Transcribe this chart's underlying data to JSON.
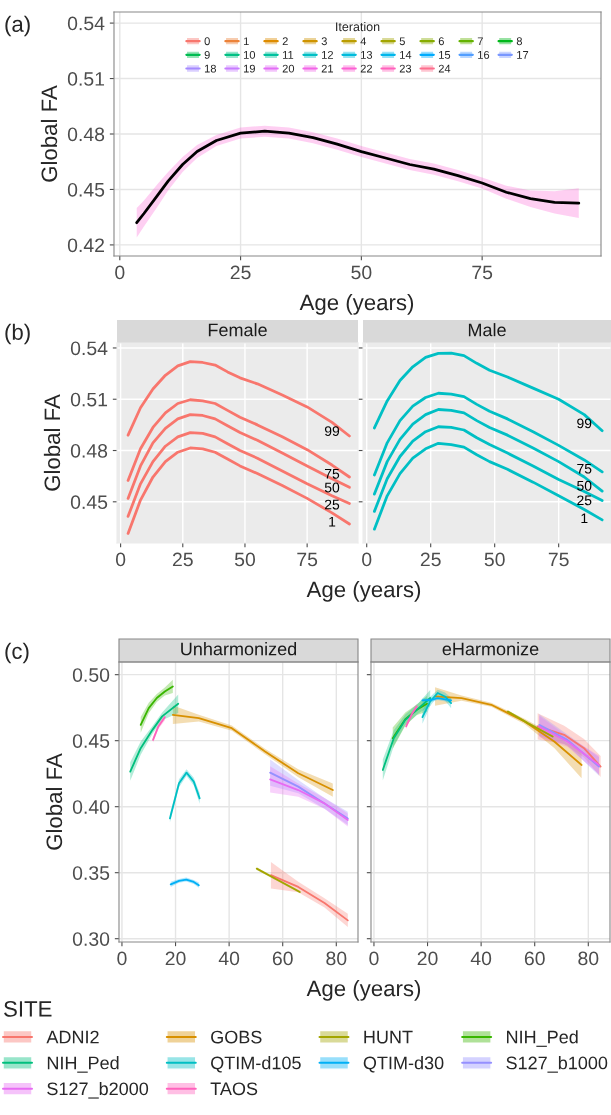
{
  "chart_data": [
    {
      "type": "line",
      "ylabel": "Global FA",
      "xlabel": "Age (years)",
      "legend_title": "Iteration",
      "legend": "top",
      "grid": true,
      "annotations": [
        "(a)"
      ],
      "xlim": [
        -1.2,
        99.6
      ],
      "ylim": [
        0.414,
        0.546
      ],
      "xticks": [
        0,
        25,
        50,
        75
      ],
      "yticks": [
        0.42,
        0.45,
        0.48,
        0.51,
        0.54
      ],
      "x": [
        3.5,
        5,
        8,
        10,
        13,
        16,
        20,
        25,
        30,
        35,
        40,
        45,
        50,
        55,
        60,
        65,
        70,
        75,
        80,
        85,
        90,
        95
      ],
      "series": [
        {
          "name": "0",
          "color": "#f8766d",
          "values": [
            null,
            null,
            null,
            null,
            null,
            null,
            null,
            null,
            null,
            null,
            null,
            null,
            null,
            null,
            null,
            null,
            null,
            null,
            null,
            null,
            null,
            null
          ]
        },
        {
          "name": "1",
          "color": "#ec8239",
          "values": [
            null,
            null,
            null,
            null,
            null,
            null,
            null,
            null,
            null,
            null,
            null,
            null,
            null,
            null,
            null,
            null,
            null,
            null,
            null,
            null,
            null,
            null
          ]
        },
        {
          "name": "2",
          "color": "#de8c00",
          "values": [
            null,
            null,
            null,
            null,
            null,
            null,
            null,
            null,
            null,
            null,
            null,
            null,
            null,
            null,
            null,
            null,
            null,
            null,
            null,
            null,
            null,
            null
          ]
        },
        {
          "name": "3",
          "color": "#cf9400",
          "values": [
            null,
            null,
            null,
            null,
            null,
            null,
            null,
            null,
            null,
            null,
            null,
            null,
            null,
            null,
            null,
            null,
            null,
            null,
            null,
            null,
            null,
            null
          ]
        },
        {
          "name": "4",
          "color": "#bb9d00",
          "values": [
            null,
            null,
            null,
            null,
            null,
            null,
            null,
            null,
            null,
            null,
            null,
            null,
            null,
            null,
            null,
            null,
            null,
            null,
            null,
            null,
            null,
            null
          ]
        },
        {
          "name": "5",
          "color": "#a3a500",
          "values": [
            null,
            null,
            null,
            null,
            null,
            null,
            null,
            null,
            null,
            null,
            null,
            null,
            null,
            null,
            null,
            null,
            null,
            null,
            null,
            null,
            null,
            null
          ]
        },
        {
          "name": "6",
          "color": "#87ac00",
          "values": [
            null,
            null,
            null,
            null,
            null,
            null,
            null,
            null,
            null,
            null,
            null,
            null,
            null,
            null,
            null,
            null,
            null,
            null,
            null,
            null,
            null,
            null
          ]
        },
        {
          "name": "7",
          "color": "#64b200",
          "values": [
            null,
            null,
            null,
            null,
            null,
            null,
            null,
            null,
            null,
            null,
            null,
            null,
            null,
            null,
            null,
            null,
            null,
            null,
            null,
            null,
            null,
            null
          ]
        },
        {
          "name": "8",
          "color": "#00b81b",
          "values": [
            null,
            null,
            null,
            null,
            null,
            null,
            null,
            null,
            null,
            null,
            null,
            null,
            null,
            null,
            null,
            null,
            null,
            null,
            null,
            null,
            null,
            null
          ]
        },
        {
          "name": "9",
          "color": "#00bc51",
          "values": [
            null,
            null,
            null,
            null,
            null,
            null,
            null,
            null,
            null,
            null,
            null,
            null,
            null,
            null,
            null,
            null,
            null,
            null,
            null,
            null,
            null,
            null
          ]
        },
        {
          "name": "10",
          "color": "#00c083",
          "values": [
            null,
            null,
            null,
            null,
            null,
            null,
            null,
            null,
            null,
            null,
            null,
            null,
            null,
            null,
            null,
            null,
            null,
            null,
            null,
            null,
            null,
            null
          ]
        },
        {
          "name": "11",
          "color": "#00c19e",
          "values": [
            null,
            null,
            null,
            null,
            null,
            null,
            null,
            null,
            null,
            null,
            null,
            null,
            null,
            null,
            null,
            null,
            null,
            null,
            null,
            null,
            null,
            null
          ]
        },
        {
          "name": "12",
          "color": "#00bfc4",
          "values": [
            null,
            null,
            null,
            null,
            null,
            null,
            null,
            null,
            null,
            null,
            null,
            null,
            null,
            null,
            null,
            null,
            null,
            null,
            null,
            null,
            null,
            null
          ]
        },
        {
          "name": "13",
          "color": "#00bbdb",
          "values": [
            null,
            null,
            null,
            null,
            null,
            null,
            null,
            null,
            null,
            null,
            null,
            null,
            null,
            null,
            null,
            null,
            null,
            null,
            null,
            null,
            null,
            null
          ]
        },
        {
          "name": "14",
          "color": "#00b6eb",
          "values": [
            null,
            null,
            null,
            null,
            null,
            null,
            null,
            null,
            null,
            null,
            null,
            null,
            null,
            null,
            null,
            null,
            null,
            null,
            null,
            null,
            null,
            null
          ]
        },
        {
          "name": "15",
          "color": "#00abfd",
          "values": [
            null,
            null,
            null,
            null,
            null,
            null,
            null,
            null,
            null,
            null,
            null,
            null,
            null,
            null,
            null,
            null,
            null,
            null,
            null,
            null,
            null,
            null
          ]
        },
        {
          "name": "16",
          "color": "#529eff",
          "values": [
            null,
            null,
            null,
            null,
            null,
            null,
            null,
            null,
            null,
            null,
            null,
            null,
            null,
            null,
            null,
            null,
            null,
            null,
            null,
            null,
            null,
            null
          ]
        },
        {
          "name": "17",
          "color": "#7997ff",
          "values": [
            null,
            null,
            null,
            null,
            null,
            null,
            null,
            null,
            null,
            null,
            null,
            null,
            null,
            null,
            null,
            null,
            null,
            null,
            null,
            null,
            null,
            null
          ]
        },
        {
          "name": "18",
          "color": "#a58aff",
          "values": [
            null,
            null,
            null,
            null,
            null,
            null,
            null,
            null,
            null,
            null,
            null,
            null,
            null,
            null,
            null,
            null,
            null,
            null,
            null,
            null,
            null,
            null
          ]
        },
        {
          "name": "19",
          "color": "#c77cff",
          "values": [
            null,
            null,
            null,
            null,
            null,
            null,
            null,
            null,
            null,
            null,
            null,
            null,
            null,
            null,
            null,
            null,
            null,
            null,
            null,
            null,
            null,
            null
          ]
        },
        {
          "name": "20",
          "color": "#e36ef6",
          "values": [
            null,
            null,
            null,
            null,
            null,
            null,
            null,
            null,
            null,
            null,
            null,
            null,
            null,
            null,
            null,
            null,
            null,
            null,
            null,
            null,
            null,
            null
          ]
        },
        {
          "name": "21",
          "color": "#f265e7",
          "values": [
            null,
            null,
            null,
            null,
            null,
            null,
            null,
            null,
            null,
            null,
            null,
            null,
            null,
            null,
            null,
            null,
            null,
            null,
            null,
            null,
            null,
            null
          ]
        },
        {
          "name": "22",
          "color": "#fc61d3",
          "values": [
            null,
            null,
            null,
            null,
            null,
            null,
            null,
            null,
            null,
            null,
            null,
            null,
            null,
            null,
            null,
            null,
            null,
            null,
            null,
            null,
            null,
            null
          ],
          "lower": [
            0.424,
            0.43,
            0.4415,
            0.4495,
            0.4595,
            0.467,
            0.4735,
            0.4775,
            0.4785,
            0.4775,
            0.475,
            0.4715,
            0.4675,
            0.464,
            0.4605,
            0.458,
            0.4545,
            0.4505,
            0.445,
            0.4405,
            0.437,
            0.4346
          ],
          "upper": [
            0.44,
            0.444,
            0.4535,
            0.4595,
            0.4675,
            0.474,
            0.4795,
            0.4835,
            0.4845,
            0.4835,
            0.481,
            0.4775,
            0.4735,
            0.47,
            0.4665,
            0.464,
            0.4605,
            0.4565,
            0.452,
            0.4495,
            0.449,
            0.4506
          ]
        },
        {
          "name": "23",
          "color": "#ff62bc",
          "values": [
            null,
            null,
            null,
            null,
            null,
            null,
            null,
            null,
            null,
            null,
            null,
            null,
            null,
            null,
            null,
            null,
            null,
            null,
            null,
            null,
            null,
            null
          ]
        },
        {
          "name": "24",
          "color": "#fd6f8e",
          "values": [
            null,
            null,
            null,
            null,
            null,
            null,
            null,
            null,
            null,
            null,
            null,
            null,
            null,
            null,
            null,
            null,
            null,
            null,
            null,
            null,
            null,
            null
          ]
        },
        {
          "color": "#000000",
          "values": [
            0.432,
            0.437,
            0.4475,
            0.4545,
            0.4635,
            0.4705,
            0.4765,
            0.4805,
            0.4815,
            0.4805,
            0.478,
            0.4745,
            0.4705,
            0.467,
            0.4635,
            0.461,
            0.4575,
            0.4535,
            0.4485,
            0.445,
            0.443,
            0.4426
          ]
        }
      ]
    },
    {
      "type": "line",
      "title": "Female",
      "ylabel": "Global FA",
      "xlabel": "Age (years)",
      "grid": true,
      "annotations": [
        "(b)"
      ],
      "xlim": [
        -1.45,
        95.45
      ],
      "ylim": [
        0.4259,
        0.5429
      ],
      "xticks": [
        0,
        25,
        50,
        75
      ],
      "yticks": [
        0.45,
        0.48,
        0.51,
        0.54
      ],
      "x": [
        3,
        8,
        13,
        18,
        23,
        28,
        33,
        38,
        43,
        48,
        55,
        65,
        75,
        85,
        92
      ],
      "series": [
        {
          "name": "99",
          "color": "#f8766d",
          "values": [
            0.489,
            0.505,
            0.516,
            0.524,
            0.5295,
            0.532,
            0.5315,
            0.53,
            0.526,
            0.5225,
            0.519,
            0.5125,
            0.5055,
            0.4965,
            0.4885
          ]
        },
        {
          "name": "75",
          "color": "#f8766d",
          "values": [
            0.4625,
            0.481,
            0.4935,
            0.502,
            0.5075,
            0.5097,
            0.509,
            0.5075,
            0.5035,
            0.4995,
            0.495,
            0.488,
            0.4805,
            0.4715,
            0.4645
          ]
        },
        {
          "name": "50",
          "color": "#f8766d",
          "values": [
            0.452,
            0.471,
            0.4845,
            0.493,
            0.4985,
            0.501,
            0.5005,
            0.4985,
            0.4945,
            0.4905,
            0.486,
            0.4785,
            0.471,
            0.4635,
            0.4585
          ]
        },
        {
          "name": "25",
          "color": "#f8766d",
          "values": [
            0.4415,
            0.4605,
            0.4735,
            0.4825,
            0.488,
            0.4905,
            0.49,
            0.488,
            0.484,
            0.48,
            0.4755,
            0.468,
            0.4605,
            0.4535,
            0.449
          ]
        },
        {
          "name": "1",
          "color": "#f8766d",
          "values": [
            0.4315,
            0.451,
            0.4645,
            0.4735,
            0.479,
            0.4815,
            0.481,
            0.479,
            0.475,
            0.471,
            0.4665,
            0.4595,
            0.452,
            0.4435,
            0.437
          ]
        }
      ]
    },
    {
      "type": "line",
      "title": "Male",
      "grid": true,
      "tick_labels": "x",
      "xlim": [
        -1.45,
        95.45
      ],
      "ylim": [
        0.4259,
        0.5429
      ],
      "xticks": [
        0,
        25,
        50,
        75
      ],
      "yticks": [
        {
          "value": 0.45,
          "label": null
        },
        {
          "value": 0.48,
          "label": null
        },
        {
          "value": 0.51,
          "label": null
        },
        {
          "value": 0.54,
          "label": null
        }
      ],
      "x": [
        3,
        8,
        13,
        18,
        23,
        28,
        33,
        38,
        43,
        48,
        55,
        65,
        75,
        85,
        92
      ],
      "series": [
        {
          "name": "99",
          "color": "#00bfc4",
          "values": [
            0.4932,
            0.509,
            0.521,
            0.529,
            0.5345,
            0.5368,
            0.537,
            0.5355,
            0.531,
            0.527,
            0.523,
            0.5165,
            0.51,
            0.501,
            0.4916
          ]
        },
        {
          "name": "75",
          "color": "#00bfc4",
          "values": [
            0.4657,
            0.4845,
            0.4975,
            0.506,
            0.511,
            0.5135,
            0.513,
            0.5115,
            0.507,
            0.503,
            0.4985,
            0.491,
            0.483,
            0.4745,
            0.4675
          ]
        },
        {
          "name": "50",
          "color": "#00bfc4",
          "values": [
            0.4545,
            0.4735,
            0.4865,
            0.4955,
            0.501,
            0.504,
            0.5035,
            0.502,
            0.4975,
            0.4935,
            0.489,
            0.4815,
            0.4735,
            0.4645,
            0.4563
          ]
        },
        {
          "name": "25",
          "color": "#00bfc4",
          "values": [
            0.4444,
            0.4635,
            0.4765,
            0.4855,
            0.491,
            0.4939,
            0.4935,
            0.492,
            0.4875,
            0.4835,
            0.4785,
            0.471,
            0.463,
            0.456,
            0.4507
          ]
        },
        {
          "name": "1",
          "color": "#00bfc4",
          "values": [
            0.434,
            0.4535,
            0.4665,
            0.4755,
            0.481,
            0.4842,
            0.4835,
            0.482,
            0.4775,
            0.4735,
            0.469,
            0.4615,
            0.4535,
            0.4455,
            0.4394
          ]
        }
      ]
    },
    {
      "type": "line",
      "title": "Unharmonized",
      "ylabel": "Global FA",
      "xlabel": "Age (years)",
      "grid": true,
      "legend": "bottom",
      "legend_title": "SITE",
      "annotations": [
        "(c)"
      ],
      "xlim": [
        -1.1,
        88.1
      ],
      "ylim": [
        0.2975,
        0.5096
      ],
      "xticks": [
        0,
        20,
        40,
        60,
        80
      ],
      "yticks": [
        {
          "value": 0.3,
          "label": "0.30"
        },
        0.35,
        {
          "value": 0.4,
          "label": "0.40"
        },
        0.45,
        {
          "value": 0.5,
          "label": "0.50"
        }
      ],
      "series": [
        {
          "name": "ADNI2",
          "color": "#f8766d",
          "x": [
            55.6,
            65.8,
            75.6,
            84.3
          ],
          "values": [
            0.3481,
            0.3392,
            0.3271,
            0.3139
          ],
          "lower": [
            0.3381,
            0.3352,
            0.3236,
            0.3089
          ],
          "upper": [
            0.3581,
            0.3432,
            0.3306,
            0.3189
          ]
        },
        {
          "name": "GOBS",
          "color": "#d89000",
          "x": [
            19,
            28.7,
            41,
            53.4,
            65.8,
            78.7
          ],
          "values": [
            0.4696,
            0.4671,
            0.4595,
            0.4418,
            0.4253,
            0.4126
          ],
          "lower": [
            0.4626,
            0.4646,
            0.4575,
            0.4398,
            0.4223,
            0.4076
          ],
          "upper": [
            0.4766,
            0.4696,
            0.4615,
            0.4438,
            0.4283,
            0.4176
          ]
        },
        {
          "name": "HUNT",
          "color": "#a3a500",
          "x": [
            50.3,
            58.3,
            66.4
          ],
          "values": [
            0.3531,
            0.3443,
            0.3354
          ],
          "lower": [
            0.3521,
            0.3433,
            0.3344
          ],
          "upper": [
            0.3541,
            0.3453,
            0.3364
          ]
        },
        {
          "name": "NIH_Ped",
          "color": "#39b600",
          "x": [
            7,
            10,
            13,
            16,
            19
          ],
          "values": [
            0.462,
            0.4747,
            0.4823,
            0.4873,
            0.4911
          ],
          "lower": [
            0.456,
            0.4707,
            0.4793,
            0.4843,
            0.4861
          ],
          "upper": [
            0.468,
            0.4787,
            0.4853,
            0.4903,
            0.4961
          ]
        },
        {
          "name": "NIH_Ped",
          "color": "#00bf7d",
          "x": [
            3.1,
            7,
            11.4,
            15,
            21
          ],
          "values": [
            0.4266,
            0.4443,
            0.4582,
            0.4684,
            0.478
          ],
          "lower": [
            0.4196,
            0.4393,
            0.4552,
            0.4654,
            0.471
          ],
          "upper": [
            0.4336,
            0.4493,
            0.4612,
            0.4714,
            0.485
          ]
        },
        {
          "name": "QTIM-d105",
          "color": "#00bfc4",
          "x": [
            17.9,
            21.3,
            24.1,
            26.8,
            29
          ],
          "values": [
            0.3911,
            0.4177,
            0.4258,
            0.419,
            0.4063
          ],
          "lower": [
            0.3881,
            0.4147,
            0.4233,
            0.416,
            0.4023
          ],
          "upper": [
            0.3941,
            0.4207,
            0.4283,
            0.422,
            0.4103
          ]
        },
        {
          "name": "QTIM-d30",
          "color": "#00b0f6",
          "x": [
            18.2,
            21.3,
            24,
            26.8,
            28.7
          ],
          "values": [
            0.3412,
            0.3438,
            0.3448,
            0.343,
            0.3405
          ],
          "lower": [
            0.3392,
            0.3423,
            0.3433,
            0.3415,
            0.3385
          ],
          "upper": [
            0.3432,
            0.3453,
            0.3463,
            0.3445,
            0.3425
          ]
        },
        {
          "name": "S127_b1000",
          "color": "#9590ff",
          "x": [
            55.3,
            65.8,
            75.6,
            84.3
          ],
          "values": [
            0.4258,
            0.4152,
            0.4025,
            0.3911
          ],
          "lower": [
            0.4158,
            0.4102,
            0.3985,
            0.3861
          ],
          "upper": [
            0.4358,
            0.4202,
            0.4065,
            0.3961
          ]
        },
        {
          "name": "S127_b2000",
          "color": "#e76bf3",
          "x": [
            55.3,
            65.8,
            75.6,
            84.3
          ],
          "values": [
            0.4207,
            0.4126,
            0.4025,
            0.3899
          ],
          "lower": [
            0.4107,
            0.4076,
            0.3985,
            0.3849
          ],
          "upper": [
            0.4307,
            0.4176,
            0.4065,
            0.3949
          ]
        },
        {
          "name": "TAOS",
          "color": "#ff62bc",
          "x": [
            11.6,
            13.6,
            16
          ],
          "values": [
            0.4506,
            0.4608,
            0.4678
          ],
          "lower": [
            0.4486,
            0.4588,
            0.4653
          ],
          "upper": [
            0.4526,
            0.4628,
            0.4703
          ]
        }
      ]
    },
    {
      "type": "line",
      "title": "eHarmonize",
      "grid": true,
      "tick_labels": "x",
      "xlim": [
        -1.1,
        88.1
      ],
      "ylim": [
        0.2975,
        0.5096
      ],
      "xticks": [
        0,
        20,
        40,
        60,
        80
      ],
      "yticks": [
        {
          "value": 0.3,
          "label": null
        },
        {
          "value": 0.35,
          "label": null
        },
        {
          "value": 0.4,
          "label": null
        },
        {
          "value": 0.45,
          "label": null
        },
        {
          "value": 0.5,
          "label": null
        }
      ],
      "series": [
        {
          "color": "#f8766d",
          "x": [
            61.1,
            71,
            78.4,
            84.6
          ],
          "values": [
            0.4608,
            0.4544,
            0.4443,
            0.4304
          ],
          "lower": [
            0.4508,
            0.4474,
            0.4373,
            0.4224
          ],
          "upper": [
            0.4708,
            0.4614,
            0.4513,
            0.4384
          ]
        },
        {
          "color": "#d89000",
          "x": [
            22.8,
            32.7,
            43.8,
            56.2,
            67.3,
            77.5
          ],
          "values": [
            0.4835,
            0.4823,
            0.4772,
            0.4646,
            0.4494,
            0.4316
          ],
          "lower": [
            0.4765,
            0.4803,
            0.4757,
            0.4626,
            0.4444,
            0.4216
          ],
          "upper": [
            0.4905,
            0.4843,
            0.4787,
            0.4666,
            0.4544,
            0.4416
          ]
        },
        {
          "color": "#a3a500",
          "x": [
            50,
            57.4,
            66.7
          ],
          "values": [
            0.4721,
            0.4633,
            0.4532
          ],
          "lower": [
            0.4711,
            0.4623,
            0.4522
          ],
          "upper": [
            0.4731,
            0.4643,
            0.4542
          ]
        },
        {
          "color": "#39b600",
          "x": [
            7,
            11.7,
            16,
            19.8
          ],
          "values": [
            0.4519,
            0.4663,
            0.4734,
            0.478
          ],
          "lower": [
            0.4439,
            0.4613,
            0.4694,
            0.472
          ],
          "upper": [
            0.4599,
            0.4713,
            0.4774,
            0.484
          ]
        },
        {
          "color": "#00bf7d",
          "x": [
            3.3,
            7.4,
            11.7,
            16.7,
            21
          ],
          "values": [
            0.4278,
            0.4519,
            0.4658,
            0.4747,
            0.4823
          ],
          "lower": [
            0.4198,
            0.4459,
            0.4618,
            0.4707,
            0.4763
          ],
          "upper": [
            0.4358,
            0.4579,
            0.4698,
            0.4787,
            0.4883
          ]
        },
        {
          "color": "#00bfc4",
          "x": [
            18.1,
            21,
            23.8,
            26.5,
            28.8
          ],
          "values": [
            0.4678,
            0.4797,
            0.4861,
            0.4835,
            0.4785
          ],
          "lower": [
            0.4628,
            0.4762,
            0.4836,
            0.4805,
            0.4745
          ],
          "upper": [
            0.4728,
            0.4832,
            0.4886,
            0.4865,
            0.4825
          ]
        },
        {
          "color": "#00b0f6",
          "x": [
            18.1,
            21.6,
            23.8,
            28.8
          ],
          "values": [
            0.4805,
            0.481,
            0.4823,
            0.4805
          ],
          "lower": [
            0.479,
            0.4795,
            0.4808,
            0.479
          ],
          "upper": [
            0.482,
            0.4825,
            0.4838,
            0.482
          ]
        },
        {
          "color": "#9590ff",
          "x": [
            61.7,
            72.2,
            84
          ],
          "values": [
            0.462,
            0.4506,
            0.4304
          ],
          "lower": [
            0.454,
            0.4466,
            0.4234
          ],
          "upper": [
            0.47,
            0.4546,
            0.4374
          ]
        },
        {
          "color": "#e76bf3",
          "x": [
            61.7,
            72.2,
            84
          ],
          "values": [
            0.4608,
            0.4494,
            0.4316
          ],
          "lower": [
            0.4528,
            0.4454,
            0.4246
          ],
          "upper": [
            0.4688,
            0.4534,
            0.4386
          ]
        },
        {
          "color": "#ff62bc",
          "x": [
            12,
            14,
            16
          ],
          "values": [
            0.4608,
            0.4696,
            0.4759
          ],
          "lower": [
            0.4588,
            0.4676,
            0.4739
          ],
          "upper": [
            0.4628,
            0.4716,
            0.4779
          ]
        }
      ]
    }
  ]
}
